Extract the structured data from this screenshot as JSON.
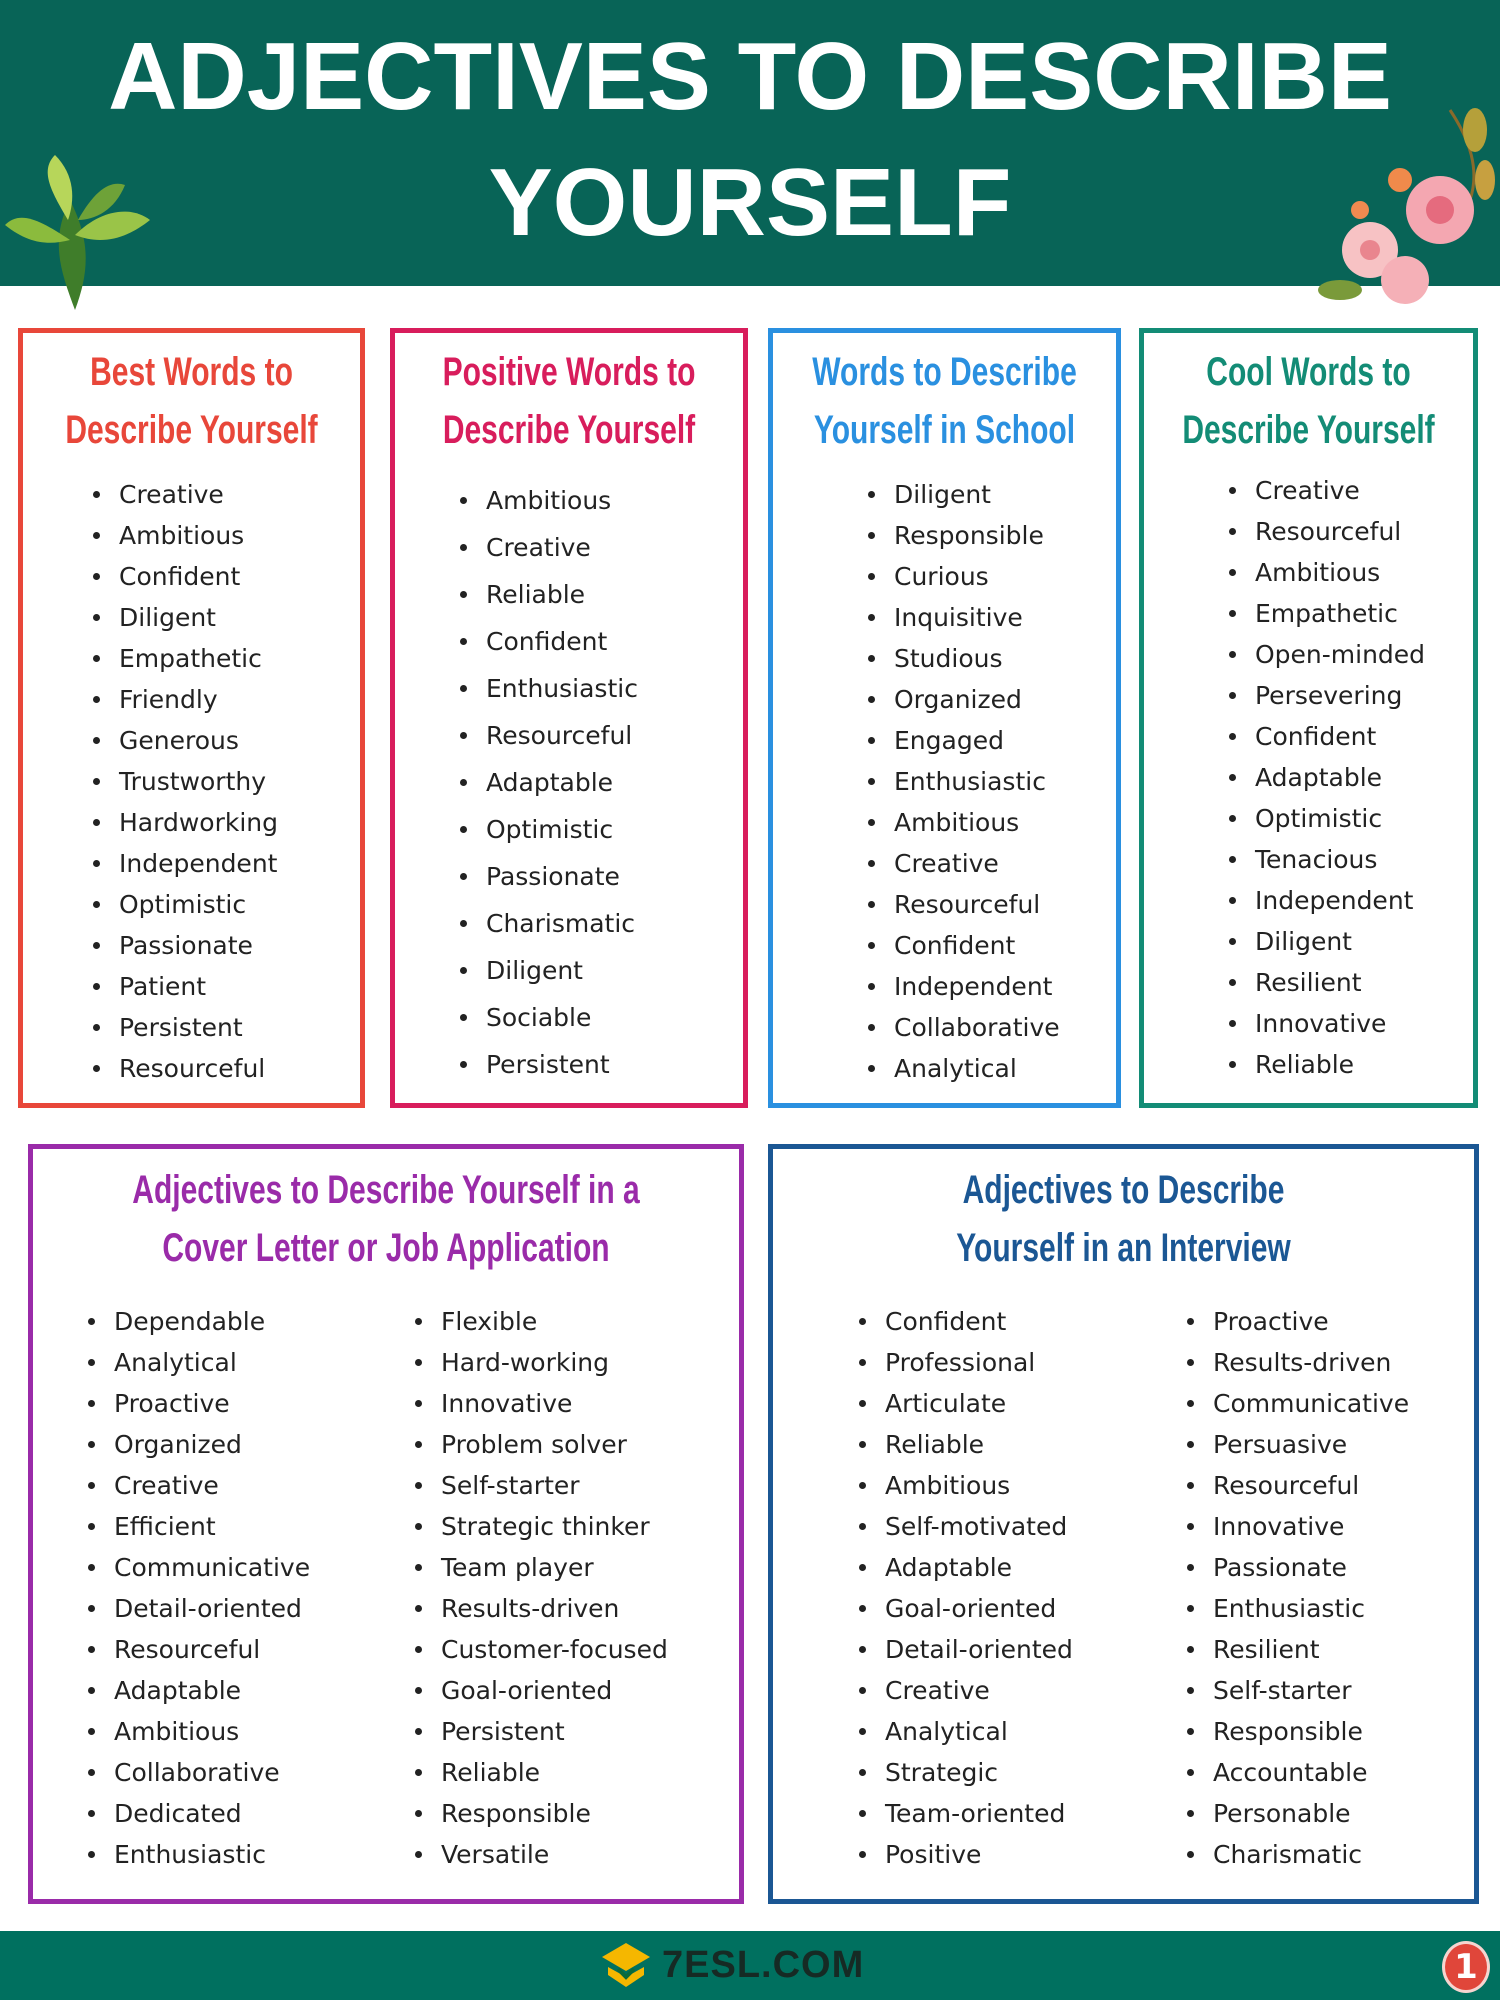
{
  "header": {
    "title_line1": "ADJECTIVES TO DESCRIBE",
    "title_line2": "YOURSELF",
    "color": "#086457"
  },
  "boxes": [
    {
      "title1": "Best Words to",
      "title2": "Describe Yourself",
      "color": "#e8473a",
      "columns": [
        [
          "Creative",
          "Ambitious",
          "Confident",
          "Diligent",
          "Empathetic",
          "Friendly",
          "Generous",
          "Trustworthy",
          "Hardworking",
          "Independent",
          "Optimistic",
          "Passionate",
          "Patient",
          "Persistent",
          "Resourceful"
        ]
      ]
    },
    {
      "title1": "Positive Words to",
      "title2": "Describe Yourself",
      "color": "#d81d5c",
      "columns": [
        [
          "Ambitious",
          "Creative",
          "Reliable",
          "Confident",
          "Enthusiastic",
          "Resourceful",
          "Adaptable",
          "Optimistic",
          "Passionate",
          "Charismatic",
          "Diligent",
          "Sociable",
          "Persistent"
        ]
      ]
    },
    {
      "title1": "Words to Describe",
      "title2": "Yourself in School",
      "color": "#2a90e0",
      "columns": [
        [
          "Diligent",
          "Responsible",
          "Curious",
          "Inquisitive",
          "Studious",
          "Organized",
          "Engaged",
          "Enthusiastic",
          "Ambitious",
          "Creative",
          "Resourceful",
          "Confident",
          "Independent",
          "Collaborative",
          "Analytical"
        ]
      ]
    },
    {
      "title1": "Cool Words to",
      "title2": "Describe Yourself",
      "color": "#138c76",
      "columns": [
        [
          "Creative",
          "Resourceful",
          "Ambitious",
          "Empathetic",
          "Open-minded",
          "Persevering",
          "Confident",
          "Adaptable",
          "Optimistic",
          "Tenacious",
          "Independent",
          "Diligent",
          "Resilient",
          "Innovative",
          "Reliable"
        ]
      ]
    },
    {
      "title1": "Adjectives to Describe Yourself in a",
      "title2": "Cover Letter or Job Application",
      "color": "#9a2ba9",
      "columns": [
        [
          "Dependable",
          "Analytical",
          "Proactive",
          "Organized",
          "Creative",
          "Efficient",
          "Communicative",
          "Detail-oriented",
          "Resourceful",
          "Adaptable",
          "Ambitious",
          "Collaborative",
          "Dedicated",
          "Enthusiastic"
        ],
        [
          "Flexible",
          "Hard-working",
          "Innovative",
          "Problem solver",
          "Self-starter",
          "Strategic thinker",
          "Team player",
          "Results-driven",
          "Customer-focused",
          "Goal-oriented",
          "Persistent",
          "Reliable",
          "Responsible",
          "Versatile"
        ]
      ]
    },
    {
      "title1": "Adjectives to Describe",
      "title2": "Yourself in an Interview",
      "color": "#1b5794",
      "columns": [
        [
          "Confident",
          "Professional",
          "Articulate",
          "Reliable",
          "Ambitious",
          "Self-motivated",
          "Adaptable",
          "Goal-oriented",
          "Detail-oriented",
          "Creative",
          "Analytical",
          "Strategic",
          "Team-oriented",
          "Positive"
        ],
        [
          "Proactive",
          "Results-driven",
          "Communicative",
          "Persuasive",
          "Resourceful",
          "Innovative",
          "Passionate",
          "Enthusiastic",
          "Resilient",
          "Self-starter",
          "Responsible",
          "Accountable",
          "Personable",
          "Charismatic"
        ]
      ]
    }
  ],
  "footer": {
    "logo_text": "7ESL.COM",
    "page_number": "1",
    "color": "#00705f"
  }
}
